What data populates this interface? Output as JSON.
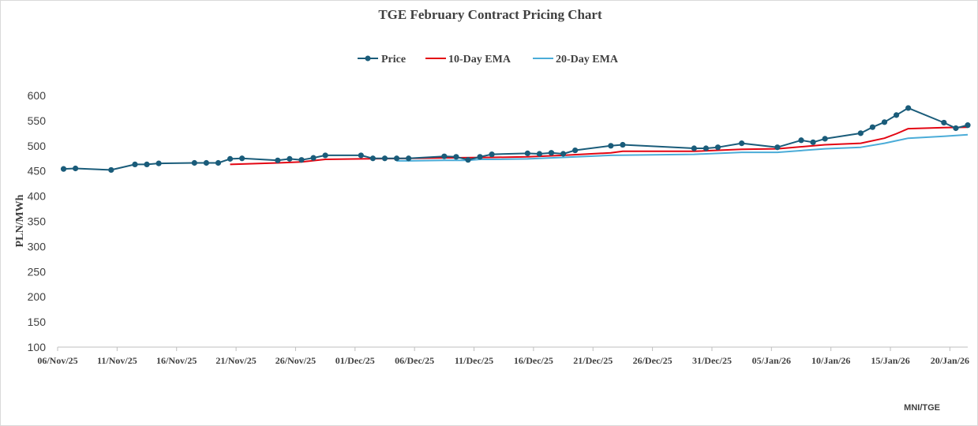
{
  "chart_data": {
    "type": "line",
    "title": "TGE February Contract Pricing Chart",
    "ylabel": "PLN/MWh",
    "xlabel": "",
    "ylim": [
      100,
      600
    ],
    "yticks": [
      100,
      150,
      200,
      250,
      300,
      350,
      400,
      450,
      500,
      550,
      600
    ],
    "x_range_days": [
      0,
      76.5
    ],
    "x_ticks": [
      {
        "day": 0,
        "label": "06/Nov/25"
      },
      {
        "day": 5,
        "label": "11/Nov/25"
      },
      {
        "day": 10,
        "label": "16/Nov/25"
      },
      {
        "day": 15,
        "label": "21/Nov/25"
      },
      {
        "day": 20,
        "label": "26/Nov/25"
      },
      {
        "day": 25,
        "label": "01/Dec/25"
      },
      {
        "day": 30,
        "label": "06/Dec/25"
      },
      {
        "day": 35,
        "label": "11/Dec/25"
      },
      {
        "day": 40,
        "label": "16/Dec/25"
      },
      {
        "day": 45,
        "label": "21/Dec/25"
      },
      {
        "day": 50,
        "label": "26/Dec/25"
      },
      {
        "day": 55,
        "label": "31/Dec/25"
      },
      {
        "day": 60,
        "label": "05/Jan/26"
      },
      {
        "day": 65,
        "label": "10/Jan/26"
      },
      {
        "day": 70,
        "label": "15/Jan/26"
      },
      {
        "day": 75,
        "label": "20/Jan/26"
      }
    ],
    "legend": [
      "Price",
      "10-Day EMA",
      "20-Day EMA"
    ],
    "legend_position": "top-center",
    "series": [
      {
        "name": "Price",
        "color": "#1a5c7a",
        "markers": true,
        "x": [
          0.5,
          1.5,
          4.5,
          6.5,
          7.5,
          8.5,
          11.5,
          12.5,
          13.5,
          14.5,
          15.5,
          18.5,
          19.5,
          20.5,
          21.5,
          22.5,
          25.5,
          26.5,
          27.5,
          28.5,
          29.5,
          32.5,
          33.5,
          34.5,
          35.5,
          36.5,
          39.5,
          40.5,
          41.5,
          42.5,
          43.5,
          46.5,
          47.5,
          53.5,
          54.5,
          55.5,
          57.5,
          60.5,
          62.5,
          63.5,
          64.5,
          67.5,
          68.5,
          69.5,
          70.5,
          71.5,
          74.5,
          75.5,
          76.5
        ],
        "values": [
          454,
          455,
          452,
          463,
          463,
          465,
          466,
          466,
          466,
          474,
          475,
          471,
          474,
          472,
          476,
          481,
          481,
          475,
          475,
          475,
          475,
          479,
          478,
          472,
          478,
          483,
          485,
          484,
          486,
          484,
          491,
          500,
          502,
          495,
          495,
          497,
          505,
          497,
          511,
          507,
          514,
          525,
          537,
          547,
          561,
          575,
          546,
          535,
          541
        ]
      },
      {
        "name": "10-Day EMA",
        "color": "#e30613",
        "markers": false,
        "x": [
          14.5,
          18.5,
          20.5,
          22.5,
          25.5,
          29.5,
          32.5,
          36.5,
          39.5,
          42.5,
          46.5,
          47.5,
          53.5,
          57.5,
          60.5,
          64.5,
          67.5,
          69.5,
          70.5,
          71.5,
          74.5,
          76.5
        ],
        "values": [
          463,
          466,
          468,
          473,
          474,
          475,
          476,
          477,
          478,
          481,
          486,
          489,
          489,
          493,
          494,
          502,
          505,
          515,
          524,
          534,
          536,
          537
        ]
      },
      {
        "name": "20-Day EMA",
        "color": "#4bacd8",
        "markers": false,
        "x": [
          28.5,
          29.5,
          32.5,
          34.5,
          35.5,
          36.5,
          39.5,
          42.5,
          46.5,
          53.5,
          57.5,
          60.5,
          64.5,
          67.5,
          69.5,
          70.5,
          71.5,
          74.5,
          76.5
        ],
        "values": [
          470,
          470,
          471,
          471,
          473,
          473,
          474,
          477,
          481,
          483,
          487,
          487,
          494,
          497,
          505,
          510,
          515,
          519,
          522
        ]
      }
    ],
    "source": "MNI/TGE"
  }
}
